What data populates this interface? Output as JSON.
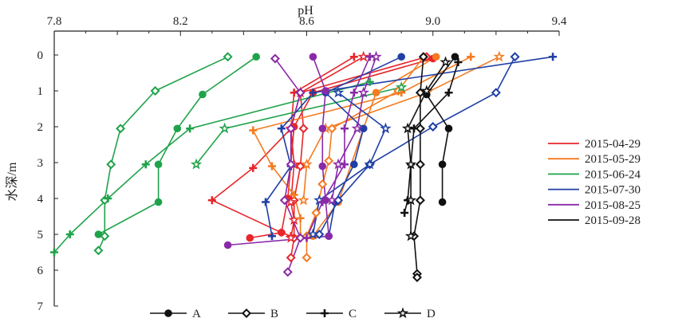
{
  "chart_data": {
    "type": "line",
    "orientation": "depth-profile",
    "xlabel": "pH",
    "ylabel": "水深/m",
    "xlim": [
      7.8,
      9.4
    ],
    "ylim": [
      0,
      7
    ],
    "x_ticks": [
      "7.8",
      "8.2",
      "8.6",
      "9.0",
      "9.4"
    ],
    "x_tick_values": [
      7.8,
      8.2,
      8.6,
      9.0,
      9.4
    ],
    "y_ticks": [
      "0",
      "1",
      "2",
      "3",
      "4",
      "5",
      "6",
      "7"
    ],
    "y_tick_values": [
      0,
      1,
      2,
      3,
      4,
      5,
      6,
      7
    ],
    "x_axis_position": "top",
    "grid": false,
    "date_legend": {
      "placement": "right",
      "entries": [
        {
          "name": "2015-04-29",
          "color": "#e8262b"
        },
        {
          "name": "2015-05-29",
          "color": "#f47b20"
        },
        {
          "name": "2015-06-24",
          "color": "#1fa34a"
        },
        {
          "name": "2015-07-30",
          "color": "#1f3fa6"
        },
        {
          "name": "2015-08-25",
          "color": "#8a2aa8"
        },
        {
          "name": "2015-09-28",
          "color": "#111111"
        }
      ]
    },
    "site_legend": {
      "placement": "bottom",
      "entries": [
        {
          "name": "A",
          "marker": "circle"
        },
        {
          "name": "B",
          "marker": "diamond"
        },
        {
          "name": "C",
          "marker": "plus"
        },
        {
          "name": "D",
          "marker": "star"
        }
      ]
    },
    "series": [
      {
        "name": "2015-04-29 A",
        "color": "#e8262b",
        "marker": "circle",
        "points": [
          [
            9.0,
            0.1
          ],
          [
            8.62,
            1.05
          ],
          [
            8.56,
            2.0
          ],
          [
            8.54,
            4.0
          ],
          [
            8.52,
            4.95
          ],
          [
            8.42,
            5.1
          ]
        ]
      },
      {
        "name": "2015-04-29 B",
        "color": "#e8262b",
        "marker": "diamond",
        "points": [
          [
            8.98,
            0.05
          ],
          [
            8.58,
            1.05
          ],
          [
            8.59,
            2.05
          ],
          [
            8.58,
            3.1
          ],
          [
            8.56,
            4.05
          ],
          [
            8.56,
            5.1
          ],
          [
            8.55,
            5.65
          ]
        ]
      },
      {
        "name": "2015-04-29 C",
        "color": "#e8262b",
        "marker": "plus",
        "points": [
          [
            8.75,
            0.05
          ],
          [
            8.56,
            1.05
          ],
          [
            8.55,
            2.05
          ],
          [
            8.43,
            3.15
          ],
          [
            8.3,
            4.05
          ],
          [
            8.52,
            4.95
          ],
          [
            8.55,
            5.05
          ]
        ]
      },
      {
        "name": "2015-04-29 D",
        "color": "#e8262b",
        "marker": "star",
        "points": [
          [
            8.78,
            0.05
          ],
          [
            8.58,
            1.05
          ],
          [
            8.55,
            2.05
          ],
          [
            8.56,
            3.05
          ],
          [
            8.55,
            4.1
          ],
          [
            8.56,
            4.6
          ],
          [
            8.55,
            5.1
          ]
        ]
      },
      {
        "name": "2015-05-29 A",
        "color": "#f47b20",
        "marker": "circle",
        "points": [
          [
            9.01,
            0.05
          ],
          [
            8.82,
            1.05
          ],
          [
            8.78,
            2.05
          ],
          [
            8.7,
            4.1
          ],
          [
            8.62,
            5.05
          ]
        ]
      },
      {
        "name": "2015-05-29 B",
        "color": "#f47b20",
        "marker": "diamond",
        "points": [
          [
            8.97,
            0.05
          ],
          [
            8.89,
            1.0
          ],
          [
            8.68,
            2.05
          ],
          [
            8.67,
            2.95
          ],
          [
            8.65,
            3.6
          ],
          [
            8.63,
            4.4
          ],
          [
            8.6,
            5.05
          ],
          [
            8.6,
            5.65
          ]
        ]
      },
      {
        "name": "2015-05-29 C",
        "color": "#f47b20",
        "marker": "plus",
        "points": [
          [
            9.12,
            0.05
          ],
          [
            8.9,
            1.05
          ],
          [
            8.43,
            2.1
          ],
          [
            8.49,
            3.1
          ],
          [
            8.56,
            3.9
          ],
          [
            8.58,
            4.55
          ],
          [
            8.58,
            5.05
          ]
        ]
      },
      {
        "name": "2015-05-29 D",
        "color": "#f47b20",
        "marker": "star",
        "points": [
          [
            9.21,
            0.05
          ],
          [
            8.98,
            1.05
          ],
          [
            8.66,
            2.05
          ],
          [
            8.6,
            3.05
          ],
          [
            8.59,
            4.05
          ]
        ]
      },
      {
        "name": "2015-06-24 A",
        "color": "#1fa34a",
        "marker": "circle",
        "points": [
          [
            8.44,
            0.05
          ],
          [
            8.27,
            1.1
          ],
          [
            8.19,
            2.05
          ],
          [
            8.13,
            3.05
          ],
          [
            8.13,
            4.1
          ],
          [
            7.94,
            5.0
          ]
        ]
      },
      {
        "name": "2015-06-24 B",
        "color": "#1fa34a",
        "marker": "diamond",
        "points": [
          [
            8.35,
            0.05
          ],
          [
            8.12,
            1.0
          ],
          [
            8.01,
            2.05
          ],
          [
            7.98,
            3.05
          ],
          [
            7.96,
            4.05
          ],
          [
            7.96,
            5.05
          ],
          [
            7.94,
            5.45
          ]
        ]
      },
      {
        "name": "2015-06-24 C",
        "color": "#1fa34a",
        "marker": "plus",
        "points": [
          [
            8.8,
            0.75
          ],
          [
            8.23,
            2.05
          ],
          [
            8.09,
            3.05
          ],
          [
            7.97,
            4.0
          ],
          [
            7.85,
            5.0
          ],
          [
            7.8,
            5.5
          ]
        ]
      },
      {
        "name": "2015-06-24 D",
        "color": "#1fa34a",
        "marker": "star",
        "points": [
          [
            8.9,
            0.9
          ],
          [
            8.34,
            2.05
          ],
          [
            8.25,
            3.05
          ]
        ]
      },
      {
        "name": "2015-07-30 A",
        "color": "#1f3fa6",
        "marker": "circle",
        "points": [
          [
            8.9,
            0.05
          ],
          [
            8.66,
            1.05
          ],
          [
            8.78,
            2.05
          ],
          [
            8.75,
            3.05
          ],
          [
            8.69,
            4.1
          ],
          [
            8.67,
            5.05
          ]
        ]
      },
      {
        "name": "2015-07-30 B",
        "color": "#1f3fa6",
        "marker": "diamond",
        "points": [
          [
            9.26,
            0.05
          ],
          [
            9.2,
            1.05
          ],
          [
            9.0,
            2.0
          ],
          [
            8.8,
            3.05
          ],
          [
            8.7,
            4.05
          ],
          [
            8.64,
            5.0
          ]
        ]
      },
      {
        "name": "2015-07-30 C",
        "color": "#1f3fa6",
        "marker": "plus",
        "points": [
          [
            9.38,
            0.05
          ],
          [
            8.62,
            1.05
          ],
          [
            8.52,
            2.05
          ],
          [
            8.55,
            3.1
          ],
          [
            8.47,
            4.1
          ],
          [
            8.49,
            5.05
          ]
        ]
      },
      {
        "name": "2015-07-30 D",
        "color": "#1f3fa6",
        "marker": "star",
        "points": [
          [
            8.7,
            1.05
          ],
          [
            8.85,
            2.05
          ],
          [
            8.8,
            3.05
          ],
          [
            8.64,
            4.05
          ],
          [
            8.62,
            5.0
          ]
        ]
      },
      {
        "name": "2015-08-25 A",
        "color": "#8a2aa8",
        "marker": "circle",
        "points": [
          [
            8.62,
            0.05
          ],
          [
            8.66,
            1.0
          ],
          [
            8.65,
            2.05
          ],
          [
            8.65,
            3.1
          ],
          [
            8.66,
            4.05
          ],
          [
            8.67,
            5.05
          ],
          [
            8.35,
            5.3
          ]
        ]
      },
      {
        "name": "2015-08-25 B",
        "color": "#8a2aa8",
        "marker": "diamond",
        "points": [
          [
            8.5,
            0.1
          ],
          [
            8.58,
            1.05
          ],
          [
            8.55,
            2.05
          ],
          [
            8.55,
            3.05
          ],
          [
            8.53,
            4.05
          ],
          [
            8.58,
            5.1
          ],
          [
            8.54,
            6.05
          ]
        ]
      },
      {
        "name": "2015-08-25 C",
        "color": "#8a2aa8",
        "marker": "plus",
        "points": [
          [
            8.8,
            0.05
          ],
          [
            8.75,
            1.05
          ],
          [
            8.72,
            2.05
          ],
          [
            8.72,
            3.05
          ],
          [
            8.65,
            4.1
          ],
          [
            8.6,
            5.1
          ]
        ]
      },
      {
        "name": "2015-08-25 D",
        "color": "#8a2aa8",
        "marker": "star",
        "points": [
          [
            8.82,
            0.05
          ],
          [
            8.78,
            1.05
          ],
          [
            8.76,
            2.05
          ],
          [
            8.7,
            3.05
          ],
          [
            8.68,
            4.05
          ]
        ]
      },
      {
        "name": "2015-09-28 A",
        "color": "#111111",
        "marker": "circle",
        "points": [
          [
            9.07,
            0.05
          ],
          [
            8.98,
            1.1
          ],
          [
            9.05,
            2.05
          ],
          [
            9.03,
            3.05
          ],
          [
            9.03,
            4.1
          ]
        ]
      },
      {
        "name": "2015-09-28 B",
        "color": "#111111",
        "marker": "diamond",
        "points": [
          [
            8.97,
            0.05
          ],
          [
            8.96,
            1.05
          ],
          [
            8.96,
            2.05
          ],
          [
            8.96,
            3.05
          ],
          [
            8.96,
            4.05
          ],
          [
            8.94,
            5.05
          ],
          [
            8.95,
            6.1
          ],
          [
            8.95,
            6.2
          ]
        ]
      },
      {
        "name": "2015-09-28 C",
        "color": "#111111",
        "marker": "plus",
        "points": [
          [
            9.08,
            0.2
          ],
          [
            9.05,
            1.05
          ],
          [
            8.94,
            2.05
          ],
          [
            8.93,
            3.05
          ],
          [
            8.92,
            4.05
          ],
          [
            8.91,
            4.4
          ]
        ]
      },
      {
        "name": "2015-09-28 D",
        "color": "#111111",
        "marker": "star",
        "points": [
          [
            9.04,
            0.2
          ],
          [
            8.98,
            1.0
          ],
          [
            8.92,
            2.05
          ],
          [
            8.93,
            3.05
          ],
          [
            8.93,
            4.05
          ],
          [
            8.93,
            5.05
          ]
        ]
      }
    ]
  }
}
